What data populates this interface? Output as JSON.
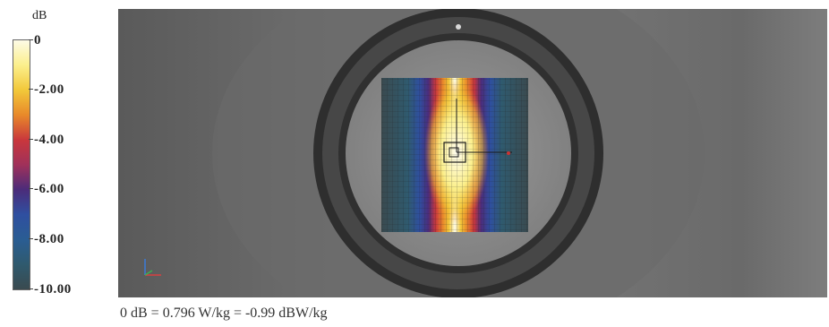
{
  "legend": {
    "unit": "dB",
    "ticks": [
      "0",
      "-2.00",
      "-4.00",
      "-6.00",
      "-8.00",
      "-10.00"
    ],
    "range": [
      -10,
      0
    ],
    "colors": {
      "0": "#fdfbe6",
      "-1": "#fbef8c",
      "-2": "#f2c83a",
      "-3": "#e8892a",
      "-4": "#c9373c",
      "-5": "#a0315a",
      "-6": "#4b2c7a",
      "-7": "#2f4fa0",
      "-8": "#2a5d93",
      "-9": "#2f5a6e",
      "-10": "#3a4a4f"
    }
  },
  "caption": "0 dB = 0.796 W/kg = -0.99 dBW/kg",
  "scene": {
    "background_color": "#6b6b6b",
    "ring_color": "#3c3c3c",
    "inner_color": "#8a8a8a"
  }
}
